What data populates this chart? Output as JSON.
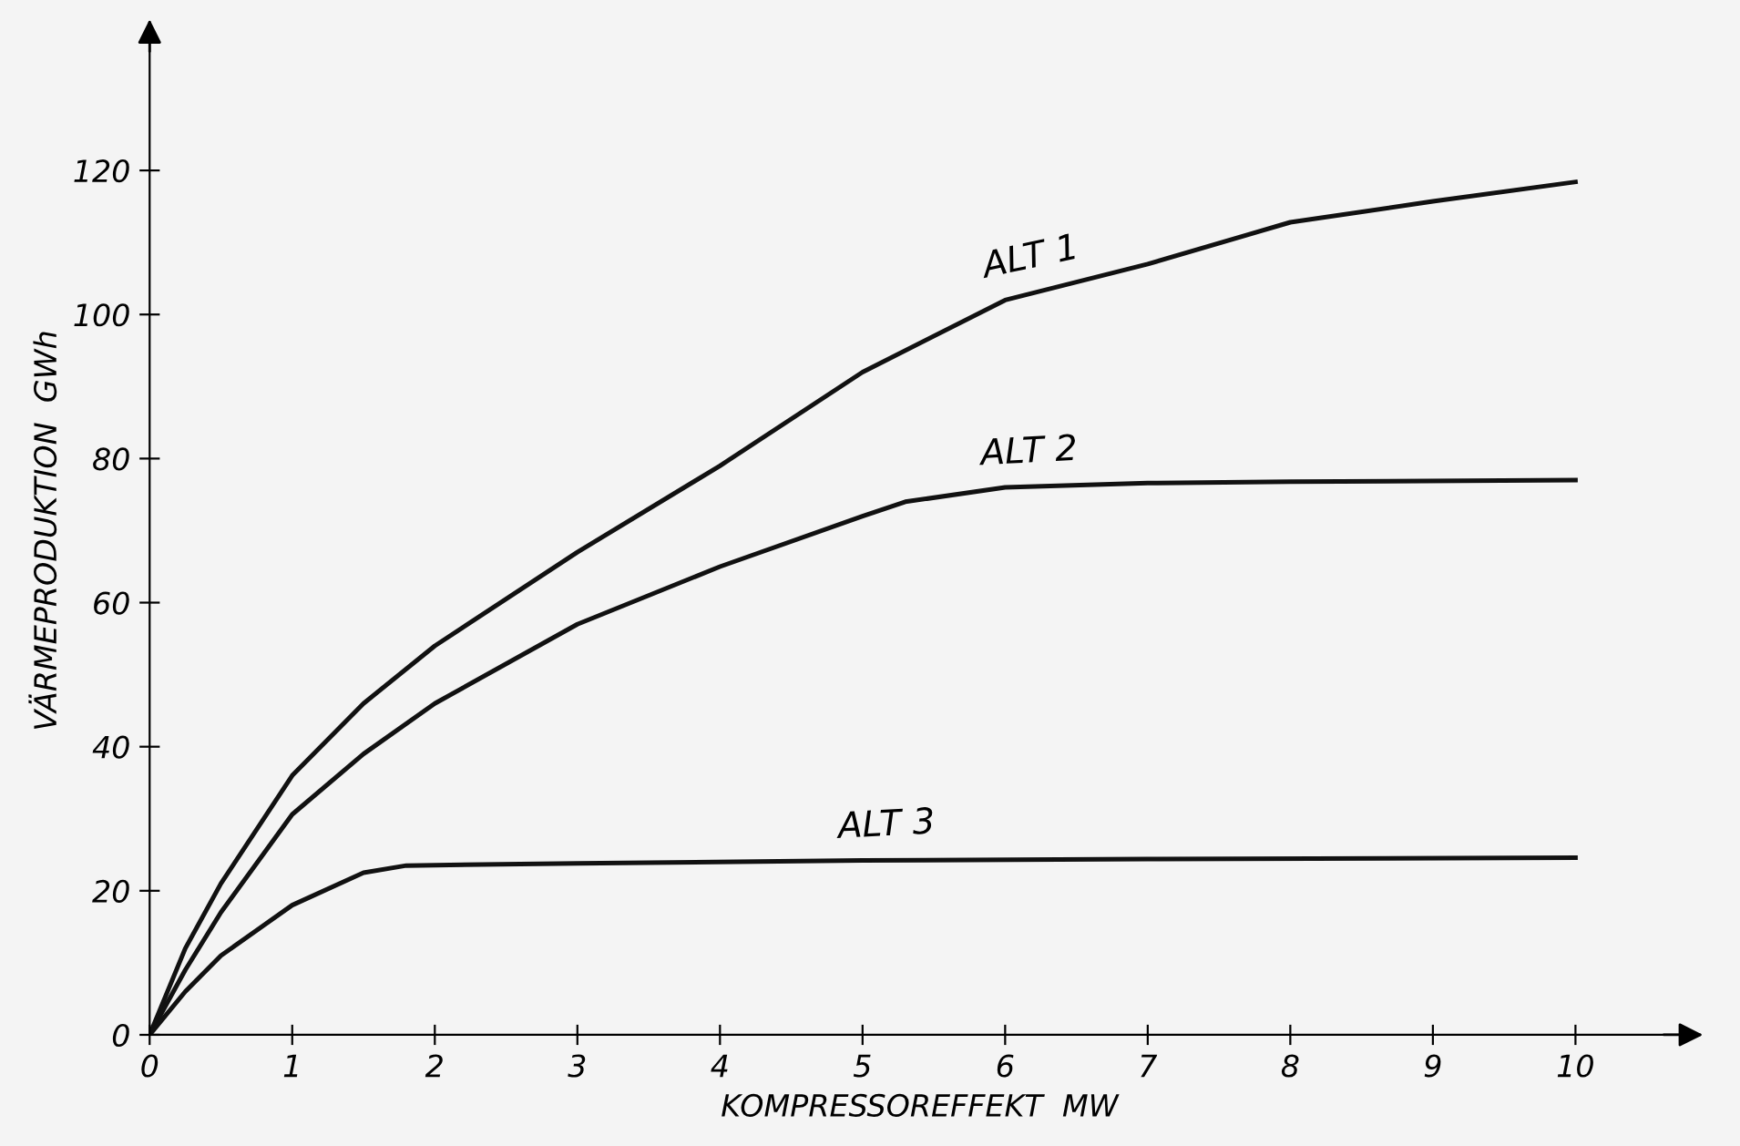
{
  "chart_data": {
    "type": "line",
    "xlabel": "KOMPRESSOREFFEKT  MW",
    "ylabel": "VÄRMEPRODUKTION  GWh",
    "xlim": [
      0,
      10.8
    ],
    "ylim": [
      0,
      140
    ],
    "xticks": [
      0,
      1,
      2,
      3,
      4,
      5,
      6,
      7,
      8,
      9,
      10
    ],
    "yticks": [
      0,
      20,
      40,
      60,
      80,
      100,
      120
    ],
    "grid": false,
    "legend": false,
    "marker": "none",
    "line_style": "solid",
    "series": [
      {
        "name": "ALT 1",
        "color": "#111111",
        "x": [
          0,
          0.25,
          0.5,
          1,
          1.5,
          2,
          3,
          4,
          5,
          6,
          7,
          8,
          9,
          10
        ],
        "values": [
          0,
          12,
          21,
          36,
          46,
          54,
          67,
          79,
          92,
          102,
          107,
          112.8,
          115.7,
          118.4
        ]
      },
      {
        "name": "ALT 2",
        "color": "#111111",
        "x": [
          0,
          0.25,
          0.5,
          1,
          1.5,
          2,
          3,
          4,
          5,
          5.3,
          6,
          7,
          8,
          10
        ],
        "values": [
          0,
          9,
          17,
          30.6,
          39,
          46,
          57,
          65,
          72,
          74,
          76,
          76.6,
          76.8,
          77
        ]
      },
      {
        "name": "ALT 3",
        "color": "#111111",
        "x": [
          0,
          0.25,
          0.5,
          1,
          1.5,
          1.8,
          3,
          5,
          7,
          10
        ],
        "values": [
          0,
          6,
          11,
          18,
          22.5,
          23.5,
          23.8,
          24.2,
          24.4,
          24.6
        ]
      }
    ]
  }
}
